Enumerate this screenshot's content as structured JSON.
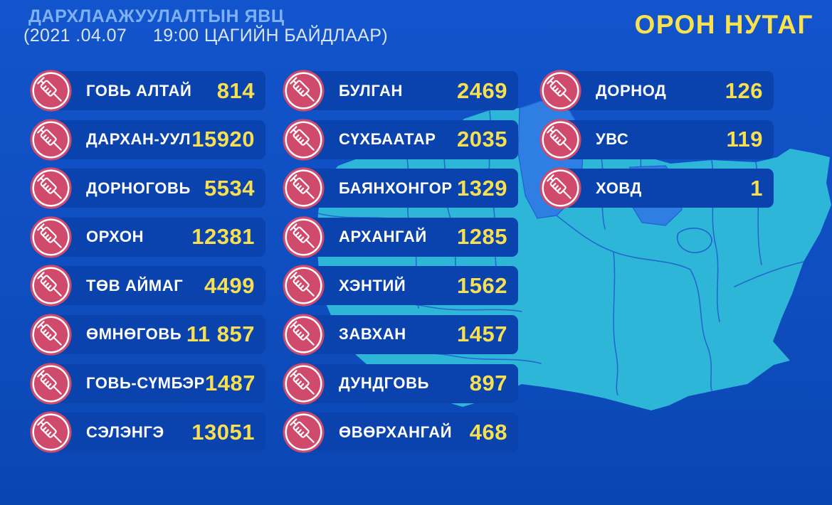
{
  "header": {
    "title": "ДАРХЛААЖУУЛАЛТЫН ЯВЦ",
    "subtitle": "(2021 .04.07     19:00 ЦАГИЙН БАЙДЛААР)",
    "region_label": "ОРОН НУТАГ"
  },
  "icon_name": "syringe-icon",
  "colors": {
    "background": "#0f4ec0",
    "row_bar": "#0a43ae",
    "accent_yellow": "#f6df50",
    "header_blue": "#7eb1f3",
    "subtitle_blue": "#d9e4f7",
    "icon_red": "#d04a6c",
    "map_cyan": "#2eb6d8",
    "map_highlight_blue": "#2e7ee4",
    "map_border_blue": "#2161cf"
  },
  "columns": [
    {
      "rows": [
        {
          "label": "ГОВЬ АЛТАЙ",
          "value": "814"
        },
        {
          "label": "ДАРХАН-УУЛ",
          "value": "15920"
        },
        {
          "label": "ДОРНОГОВЬ",
          "value": "5534"
        },
        {
          "label": "ОРХОН",
          "value": "12381"
        },
        {
          "label": "ТӨВ АЙМАГ",
          "value": "4499"
        },
        {
          "label": "ӨМНӨГОВЬ",
          "value": "11 857"
        },
        {
          "label": "ГОВЬ-СҮМБЭР",
          "value": "1487"
        },
        {
          "label": "СЭЛЭНГЭ",
          "value": "13051"
        }
      ]
    },
    {
      "rows": [
        {
          "label": "БУЛГАН",
          "value": "2469"
        },
        {
          "label": "СҮХБААТАР",
          "value": "2035"
        },
        {
          "label": "БАЯНХОНГОР",
          "value": "1329"
        },
        {
          "label": "АРХАНГАЙ",
          "value": "1285"
        },
        {
          "label": "ХЭНТИЙ",
          "value": "1562"
        },
        {
          "label": "ЗАВХАН",
          "value": "1457"
        },
        {
          "label": "ДУНДГОВЬ",
          "value": "897"
        },
        {
          "label": "ӨВӨРХАНГАЙ",
          "value": "468"
        }
      ]
    },
    {
      "rows": [
        {
          "label": "ДОРНОД",
          "value": "126"
        },
        {
          "label": "УВС",
          "value": "119"
        },
        {
          "label": "ХОВД",
          "value": "1"
        }
      ]
    }
  ]
}
